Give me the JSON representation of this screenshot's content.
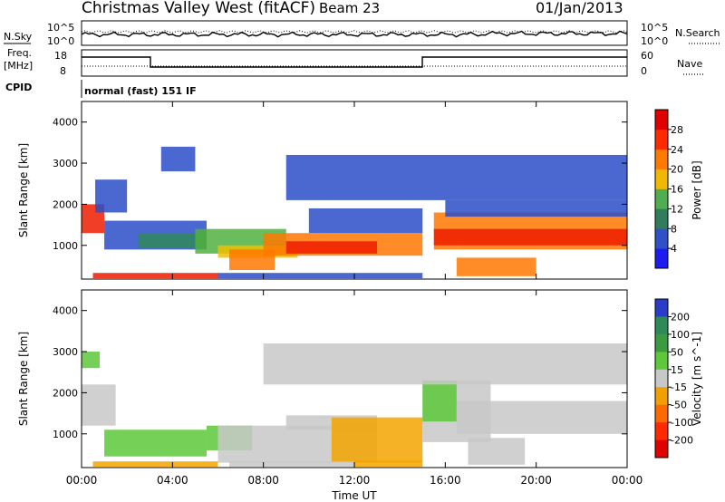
{
  "header": {
    "station": "Christmas Valley West (fitACF)",
    "beam": "Beam 23",
    "date": "01/Jan/2013",
    "cpid_mode": "normal (fast) 151 IF"
  },
  "strip_labels": {
    "nsky": "N.Sky",
    "nsearch": "N.Search",
    "freq": "Freq.",
    "freq_unit": "[MHz]",
    "nave": "Nave",
    "cpid": "CPID",
    "noise_hi_left": "10^5",
    "noise_lo_left": "10^0",
    "noise_hi_right": "10^5",
    "noise_lo_right": "10^0",
    "freq_hi": "18",
    "freq_lo": "8",
    "nave_hi": "60",
    "nave_lo": "0"
  },
  "chart_data": [
    {
      "type": "heatmap",
      "panel": "power",
      "title": "",
      "ylabel": "Slant Range [km]",
      "xlabel": "",
      "ylim": [
        180,
        4500
      ],
      "xlim_hours": [
        0,
        24
      ],
      "colorbar_label": "Power [dB]",
      "colorbar_ticks": [
        "4",
        "8",
        "12",
        "16",
        "20",
        "24",
        "28"
      ],
      "colorbar_colors": [
        "#1c1cf0",
        "#3050c8",
        "#2f7d5a",
        "#4fae4f",
        "#f0b800",
        "#ff7a00",
        "#ff2a00",
        "#e00000"
      ],
      "colors": {
        "low": "#2c4cc8",
        "mid": "#2f8a5a",
        "green": "#50b040",
        "yellow": "#f0c000",
        "orange": "#ff7800",
        "red": "#ee1c00"
      },
      "bands": [
        {
          "t0": 0.0,
          "t1": 1.0,
          "r0": 1300,
          "r1": 2000,
          "level": "red"
        },
        {
          "t0": 0.6,
          "t1": 2.0,
          "r0": 1800,
          "r1": 2600,
          "level": "low"
        },
        {
          "t0": 1.0,
          "t1": 5.5,
          "r0": 900,
          "r1": 1600,
          "level": "low"
        },
        {
          "t0": 2.5,
          "t1": 5.5,
          "r0": 950,
          "r1": 1300,
          "level": "mid"
        },
        {
          "t0": 5.0,
          "t1": 9.0,
          "r0": 800,
          "r1": 1400,
          "level": "green"
        },
        {
          "t0": 6.0,
          "t1": 9.5,
          "r0": 700,
          "r1": 1000,
          "level": "yellow"
        },
        {
          "t0": 6.5,
          "t1": 8.5,
          "r0": 400,
          "r1": 900,
          "level": "orange"
        },
        {
          "t0": 8.0,
          "t1": 15.0,
          "r0": 750,
          "r1": 1300,
          "level": "orange"
        },
        {
          "t0": 9.0,
          "t1": 13.0,
          "r0": 800,
          "r1": 1100,
          "level": "red"
        },
        {
          "t0": 10.0,
          "t1": 15.0,
          "r0": 1300,
          "r1": 1900,
          "level": "low"
        },
        {
          "t0": 15.5,
          "t1": 24.0,
          "r0": 900,
          "r1": 1800,
          "level": "orange"
        },
        {
          "t0": 15.5,
          "t1": 24.0,
          "r0": 1000,
          "r1": 1400,
          "level": "red"
        },
        {
          "t0": 16.0,
          "t1": 24.0,
          "r0": 1700,
          "r1": 2100,
          "level": "low"
        },
        {
          "t0": 16.5,
          "t1": 20.0,
          "r0": 250,
          "r1": 700,
          "level": "orange"
        },
        {
          "t0": 0.5,
          "t1": 6.0,
          "r0": 200,
          "r1": 330,
          "level": "red"
        },
        {
          "t0": 6.0,
          "t1": 15.0,
          "r0": 200,
          "r1": 330,
          "level": "low"
        },
        {
          "t0": 9.0,
          "t1": 24.0,
          "r0": 2100,
          "r1": 3200,
          "level": "low"
        },
        {
          "t0": 3.5,
          "t1": 5.0,
          "r0": 2800,
          "r1": 3400,
          "level": "low"
        }
      ]
    },
    {
      "type": "heatmap",
      "panel": "velocity",
      "title": "",
      "ylabel": "Slant Range [km]",
      "xlabel": "Time UT",
      "ylim": [
        180,
        4500
      ],
      "xlim_hours": [
        0,
        24
      ],
      "x_ticks": [
        "00:00",
        "04:00",
        "08:00",
        "12:00",
        "16:00",
        "20:00",
        "00:00"
      ],
      "y_ticks": [
        "1000",
        "2000",
        "3000",
        "4000"
      ],
      "colorbar_label": "Velocity [m s^-1]",
      "colorbar_ticks": [
        "200",
        "100",
        "50",
        "15",
        "-15",
        "-50",
        "-100",
        "-200"
      ],
      "colorbar_colors": [
        "#2a3cc8",
        "#2f8a5a",
        "#3c9a40",
        "#5cc83a",
        "#c8c8c8",
        "#f0a000",
        "#ff6a00",
        "#ff2a00",
        "#e00000"
      ],
      "colors": {
        "gray": "#c8c8c8",
        "green": "#5cc83a",
        "orange": "#f5a400",
        "dkgreen": "#3c9a40"
      },
      "bands": [
        {
          "t0": 0.0,
          "t1": 1.5,
          "r0": 1200,
          "r1": 2200,
          "level": "gray"
        },
        {
          "t0": 1.0,
          "t1": 5.5,
          "r0": 450,
          "r1": 1100,
          "level": "green"
        },
        {
          "t0": 5.5,
          "t1": 7.5,
          "r0": 600,
          "r1": 1200,
          "level": "green"
        },
        {
          "t0": 6.0,
          "t1": 13.0,
          "r0": 300,
          "r1": 1200,
          "level": "gray"
        },
        {
          "t0": 9.0,
          "t1": 13.0,
          "r0": 1100,
          "r1": 1450,
          "level": "gray"
        },
        {
          "t0": 11.0,
          "t1": 15.0,
          "r0": 300,
          "r1": 1400,
          "level": "orange"
        },
        {
          "t0": 15.0,
          "t1": 18.0,
          "r0": 800,
          "r1": 2300,
          "level": "gray"
        },
        {
          "t0": 15.0,
          "t1": 16.5,
          "r0": 1300,
          "r1": 2300,
          "level": "green"
        },
        {
          "t0": 16.5,
          "t1": 24.0,
          "r0": 1000,
          "r1": 1800,
          "level": "gray"
        },
        {
          "t0": 17.0,
          "t1": 19.5,
          "r0": 250,
          "r1": 900,
          "level": "gray"
        },
        {
          "t0": 12.0,
          "t1": 15.0,
          "r0": 200,
          "r1": 350,
          "level": "orange"
        },
        {
          "t0": 0.5,
          "t1": 6.0,
          "r0": 200,
          "r1": 330,
          "level": "orange"
        },
        {
          "t0": 6.5,
          "t1": 12.0,
          "r0": 200,
          "r1": 330,
          "level": "gray"
        },
        {
          "t0": 0.0,
          "t1": 0.8,
          "r0": 2600,
          "r1": 3000,
          "level": "green"
        },
        {
          "t0": 8.0,
          "t1": 24.0,
          "r0": 2200,
          "r1": 3200,
          "level": "gray"
        }
      ]
    }
  ]
}
